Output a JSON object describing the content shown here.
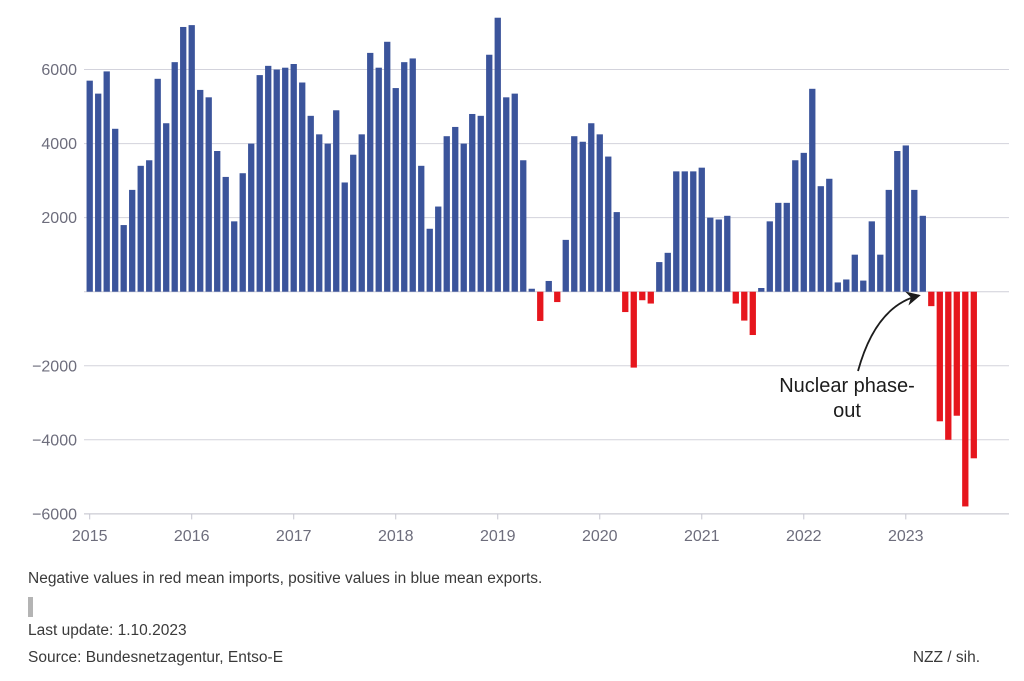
{
  "chart_data": {
    "type": "bar",
    "title": "",
    "description": "Monthly net electricity exchange, positive = exports (blue), negative = imports (red)",
    "start_month": "2015-01",
    "end_month": "2023-09",
    "series": [
      {
        "name": "Net electricity exports per month",
        "values": [
          5700,
          5350,
          5950,
          4400,
          1800,
          2750,
          3400,
          3550,
          5750,
          4550,
          6200,
          7150,
          7200,
          5450,
          5250,
          3800,
          3100,
          1900,
          3200,
          4000,
          5850,
          6100,
          6000,
          6050,
          6150,
          5650,
          4750,
          4250,
          4000,
          4900,
          2950,
          3700,
          4250,
          6450,
          6050,
          6750,
          5500,
          6200,
          6300,
          3400,
          1700,
          2300,
          4200,
          4450,
          4000,
          4800,
          4750,
          6400,
          7400,
          5250,
          5350,
          3550,
          80,
          -790,
          290,
          -280,
          1400,
          4200,
          4050,
          4550,
          4250,
          3650,
          2150,
          -550,
          -2050,
          -230,
          -320,
          800,
          1050,
          3250,
          3250,
          3250,
          3350,
          2000,
          1950,
          2050,
          -320,
          -780,
          -1170,
          100,
          1900,
          2400,
          2400,
          3550,
          3750,
          5480,
          2850,
          3050,
          250,
          330,
          1000,
          300,
          1900,
          1000,
          2750,
          3800,
          3950,
          2750,
          2050,
          -390,
          -3500,
          -4000,
          -3350,
          -5800,
          -4500
        ]
      }
    ],
    "x_tick_labels": [
      {
        "label": "2015",
        "month_index": 0
      },
      {
        "label": "2016",
        "month_index": 12
      },
      {
        "label": "2017",
        "month_index": 24
      },
      {
        "label": "2018",
        "month_index": 36
      },
      {
        "label": "2019",
        "month_index": 48
      },
      {
        "label": "2020",
        "month_index": 60
      },
      {
        "label": "2021",
        "month_index": 72
      },
      {
        "label": "2022",
        "month_index": 84
      },
      {
        "label": "2023",
        "month_index": 96
      }
    ],
    "y_ticks": [
      {
        "label": "6000",
        "value": 6000
      },
      {
        "label": "4000",
        "value": 4000
      },
      {
        "label": "2000",
        "value": 2000
      },
      {
        "label": "−2000",
        "value": -2000
      },
      {
        "label": "−4000",
        "value": -4000
      },
      {
        "label": "−6000",
        "value": -6000
      }
    ],
    "ylim": [
      -6100,
      7450
    ],
    "grid": true,
    "legend_position": "none",
    "positive_color": "#3b549b",
    "negative_color": "#e6161d",
    "annotation": {
      "line1": "Nuclear phase-",
      "line2": "out",
      "points_to_month": "2023-04"
    }
  },
  "footer": {
    "note": "Negative values in red mean imports, positive values in blue mean exports.",
    "last_update": "Last update: 1.10.2023",
    "source": "Source: Bundesnetzagentur, Entso-E",
    "credit": "NZZ / sih."
  }
}
